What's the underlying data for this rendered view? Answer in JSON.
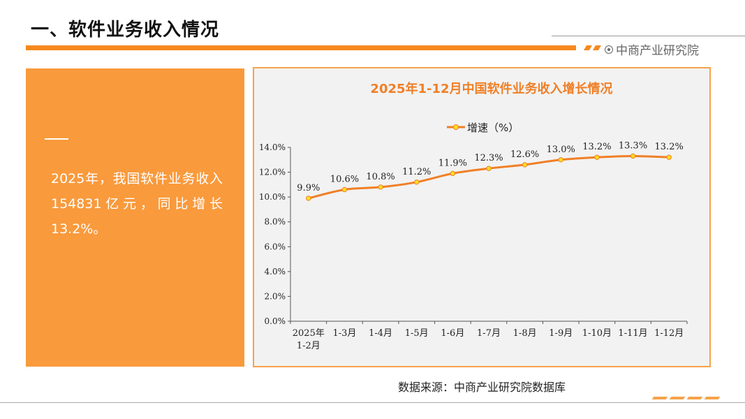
{
  "page": {
    "title": "一、软件业务收入情况",
    "brand": "中商产业研究院",
    "summary": "2025年，我国软件业务收入154831亿元，同比增长13.2%。",
    "source": "数据来源：中商产业研究院数据库"
  },
  "colors": {
    "accent": "#f7891f",
    "panel": "#f99a3c",
    "line": "#f07f26",
    "marker": "#ffdf1f",
    "title": "#f07f26",
    "plot_bg": "#f2f2f2"
  },
  "chart_data": {
    "type": "line",
    "title": "2025年1-12月中国软件业务收入增长情况",
    "categories": [
      "2025年\n1-2月",
      "1-3月",
      "1-4月",
      "1-5月",
      "1-6月",
      "1-7月",
      "1-8月",
      "1-9月",
      "1-10月",
      "1-11月",
      "1-12月"
    ],
    "series": [
      {
        "name": "增速（%）",
        "values": [
          9.9,
          10.6,
          10.8,
          11.2,
          11.9,
          12.3,
          12.6,
          13.0,
          13.2,
          13.3,
          13.2
        ],
        "labels": [
          "9.9%",
          "10.6%",
          "10.8%",
          "11.2%",
          "11.9%",
          "12.3%",
          "12.6%",
          "13.0%",
          "13.2%",
          "13.3%",
          "13.2%"
        ]
      }
    ],
    "y_ticks": [
      "0.0%",
      "2.0%",
      "4.0%",
      "6.0%",
      "8.0%",
      "10.0%",
      "12.0%",
      "14.0%"
    ],
    "ylim": [
      0,
      14
    ],
    "ytick_step": 2,
    "grid": false,
    "legend_position": "top-center",
    "xlabel": "",
    "ylabel": ""
  }
}
